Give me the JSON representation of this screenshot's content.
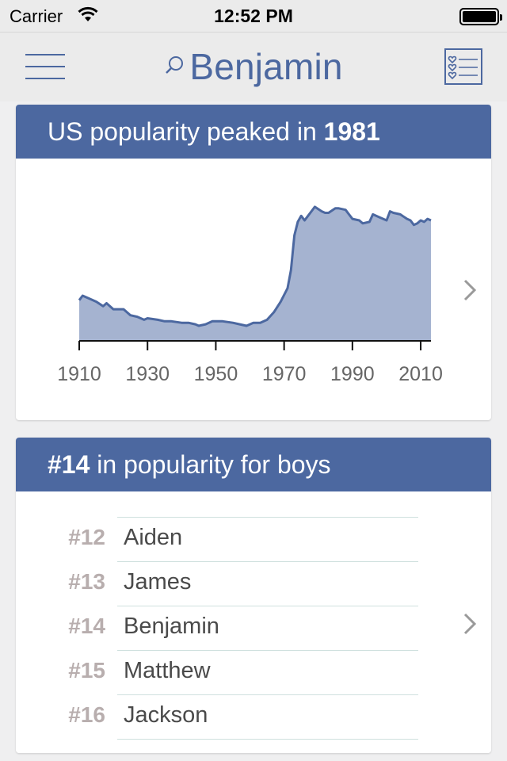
{
  "status_bar": {
    "carrier": "Carrier",
    "time": "12:52 PM"
  },
  "nav": {
    "title": "Benjamin"
  },
  "popularity_card": {
    "header_prefix": "US popularity peaked in ",
    "peak_year": "1981"
  },
  "rank_card": {
    "rank": "#14",
    "header_suffix": " in popularity for boys",
    "items": [
      {
        "rank": "#12",
        "name": "Aiden"
      },
      {
        "rank": "#13",
        "name": "James"
      },
      {
        "rank": "#14",
        "name": "Benjamin"
      },
      {
        "rank": "#15",
        "name": "Matthew"
      },
      {
        "rank": "#16",
        "name": "Jackson"
      }
    ]
  },
  "colors": {
    "accent": "#4c68a0",
    "area_fill": "#a5b3d0",
    "rank_number": "#b8aeae"
  },
  "chart_data": {
    "type": "area",
    "title": "",
    "xlabel": "",
    "ylabel": "",
    "xlim": [
      1910,
      2013
    ],
    "x_ticks": [
      1910,
      1930,
      1950,
      1970,
      1990,
      2010
    ],
    "x_tick_labels": [
      "1910",
      "1930",
      "1950",
      "1970",
      "1990",
      "2010"
    ],
    "ylim": [
      0,
      100
    ],
    "grid": false,
    "series": [
      {
        "x": [
          1910,
          1911,
          1913,
          1915,
          1917,
          1918,
          1920,
          1923,
          1925,
          1927,
          1929,
          1930,
          1933,
          1935,
          1937,
          1940,
          1942,
          1944,
          1945,
          1947,
          1949,
          1950,
          1952,
          1955,
          1957,
          1959,
          1961,
          1963,
          1965,
          1967,
          1969,
          1971,
          1972,
          1973,
          1974,
          1975,
          1976,
          1977,
          1978,
          1979,
          1981,
          1982,
          1983,
          1985,
          1986,
          1988,
          1989,
          1990,
          1992,
          1993,
          1995,
          1996,
          1998,
          2000,
          2001,
          2002,
          2004,
          2006,
          2007,
          2008,
          2009,
          2010,
          2011,
          2012,
          2013
        ],
        "values": [
          27,
          30,
          28,
          26,
          23,
          25,
          21,
          21,
          17,
          16,
          14,
          15,
          14,
          13,
          13,
          12,
          12,
          11,
          10,
          11,
          13,
          13,
          13,
          12,
          11,
          10,
          12,
          12,
          14,
          19,
          26,
          35,
          47,
          70,
          79,
          83,
          80,
          83,
          86,
          89,
          86,
          85,
          85,
          88,
          88,
          87,
          84,
          81,
          80,
          78,
          79,
          84,
          82,
          80,
          86,
          85,
          84,
          81,
          80,
          77,
          78,
          80,
          79,
          81,
          80
        ]
      }
    ]
  }
}
